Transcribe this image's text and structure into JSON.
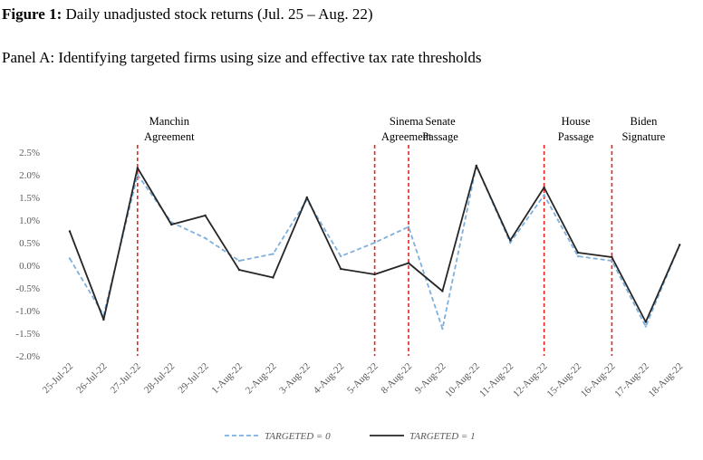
{
  "figure": {
    "label": "Figure 1:",
    "title": "Daily unadjusted stock returns (Jul. 25 – Aug. 22)",
    "panel": "Panel A: Identifying targeted firms using size and effective tax rate thresholds"
  },
  "chart_data": {
    "type": "line",
    "categories": [
      "25-Jul-22",
      "26-Jul-22",
      "27-Jul-22",
      "28-Jul-22",
      "29-Jul-22",
      "1-Aug-22",
      "2-Aug-22",
      "3-Aug-22",
      "4-Aug-22",
      "5-Aug-22",
      "8-Aug-22",
      "9-Aug-22",
      "10-Aug-22",
      "11-Aug-22",
      "12-Aug-22",
      "15-Aug-22",
      "16-Aug-22",
      "17-Aug-22",
      "18-Aug-22"
    ],
    "y_ticks": [
      "2.5%",
      "2.0%",
      "1.5%",
      "1.0%",
      "0.5%",
      "0.0%",
      "-0.5%",
      "-1.0%",
      "-1.5%",
      "-2.0%"
    ],
    "ylim": [
      -2.0,
      2.5
    ],
    "series": [
      {
        "name": "TARGETED = 0",
        "style": "dashed",
        "color": "#7eb0dd",
        "values": [
          0.15,
          -1.1,
          2.0,
          0.95,
          0.6,
          0.1,
          0.25,
          1.45,
          0.2,
          0.5,
          0.85,
          -1.4,
          2.2,
          0.5,
          1.55,
          0.2,
          0.1,
          -1.35,
          0.45
        ]
      },
      {
        "name": "TARGETED = 1",
        "style": "solid",
        "color": "#262626",
        "values": [
          0.75,
          -1.2,
          2.15,
          0.9,
          1.1,
          -0.1,
          -0.27,
          1.5,
          -0.08,
          -0.2,
          0.05,
          -0.57,
          2.2,
          0.55,
          1.72,
          0.28,
          0.18,
          -1.25,
          0.45
        ]
      }
    ],
    "events": [
      {
        "index": 2,
        "lines": [
          "Manchin",
          "Agreement"
        ]
      },
      {
        "index": 9,
        "lines": [
          "Sinema",
          "Agreement"
        ]
      },
      {
        "index": 10,
        "lines": [
          "Senate",
          "Passage"
        ]
      },
      {
        "index": 14,
        "lines": [
          "House",
          "Passage"
        ]
      },
      {
        "index": 16,
        "lines": [
          "Biden",
          "Signature"
        ]
      }
    ],
    "event_line_color": "#e8261f",
    "grid": false,
    "legend_position": "bottom-center"
  }
}
